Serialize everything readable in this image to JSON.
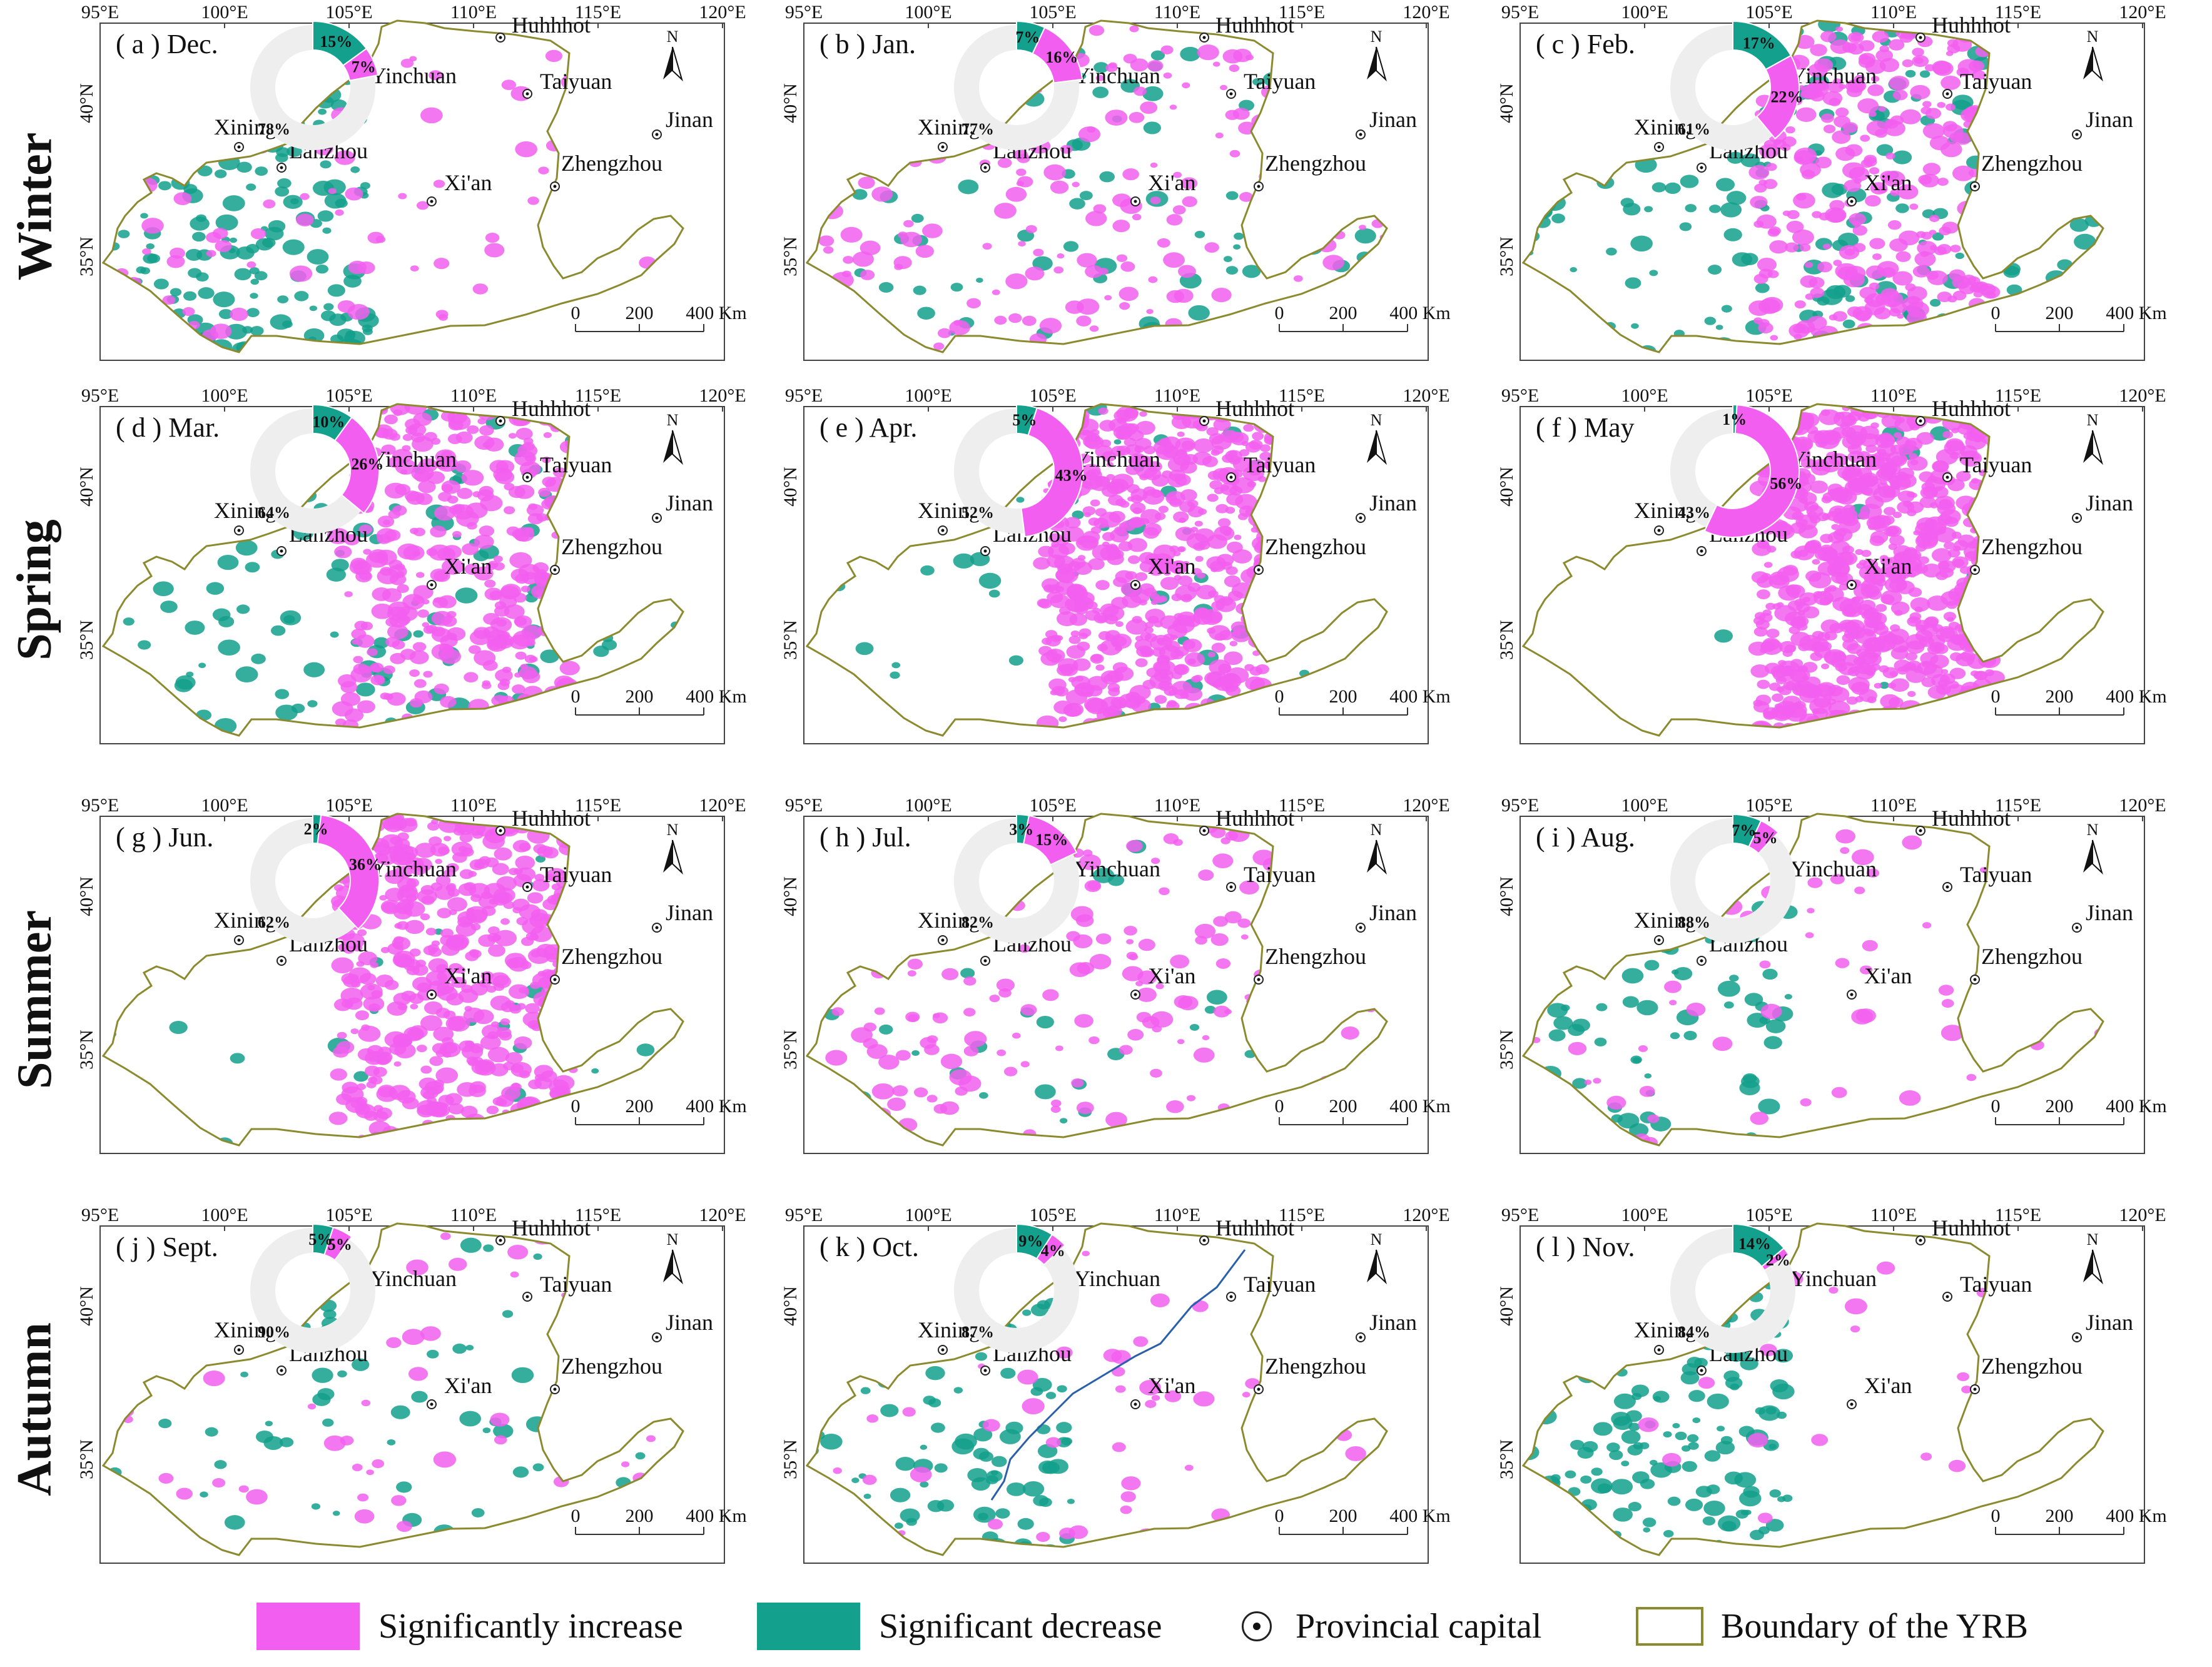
{
  "colors": {
    "increase": "#f25ff0",
    "decrease": "#13a08c",
    "nochange": "#eeeeee",
    "boundary": "#8b8a2e",
    "river": "#2a5faa"
  },
  "seasons": [
    "Winter",
    "Spring",
    "Summer",
    "Autumn"
  ],
  "lon_labels": [
    "95°E",
    "100°E",
    "105°E",
    "110°E",
    "115°E",
    "120°E"
  ],
  "lat_labels": [
    "40°N",
    "35°N"
  ],
  "cities": [
    "Huhhhot",
    "Yinchuan",
    "Taiyuan",
    "Jinan",
    "Xining",
    "Lanzhou",
    "Zhengzhou",
    "Xi'an"
  ],
  "scale_labels": [
    "0",
    "200",
    "400 Km"
  ],
  "north_label": "N",
  "panels": [
    {
      "label": "( a ) Dec.",
      "inc": 7,
      "dec": 15,
      "none": 78,
      "inc_label": "7%",
      "dec_label": "15%",
      "none_label": "78%"
    },
    {
      "label": "( b ) Jan.",
      "inc": 16,
      "dec": 7,
      "none": 77,
      "inc_label": "16%",
      "dec_label": "7%",
      "none_label": "77%"
    },
    {
      "label": "( c ) Feb.",
      "inc": 22,
      "dec": 17,
      "none": 61,
      "inc_label": "22%",
      "dec_label": "17%",
      "none_label": "61%"
    },
    {
      "label": "( d ) Mar.",
      "inc": 26,
      "dec": 10,
      "none": 64,
      "inc_label": "26%",
      "dec_label": "10%",
      "none_label": "64%"
    },
    {
      "label": "( e ) Apr.",
      "inc": 43,
      "dec": 5,
      "none": 52,
      "inc_label": "43%",
      "dec_label": "5%",
      "none_label": "52%"
    },
    {
      "label": "( f ) May",
      "inc": 56,
      "dec": 1,
      "none": 43,
      "inc_label": "56%",
      "dec_label": "1%",
      "none_label": "43%"
    },
    {
      "label": "( g ) Jun.",
      "inc": 36,
      "dec": 2,
      "none": 62,
      "inc_label": "36%",
      "dec_label": "2%",
      "none_label": "62%"
    },
    {
      "label": "( h ) Jul.",
      "inc": 15,
      "dec": 3,
      "none": 82,
      "inc_label": "15%",
      "dec_label": "3%",
      "none_label": "82%"
    },
    {
      "label": "( i ) Aug.",
      "inc": 5,
      "dec": 7,
      "none": 88,
      "inc_label": "5%",
      "dec_label": "7%",
      "none_label": "88%"
    },
    {
      "label": "( j ) Sept.",
      "inc": 5,
      "dec": 5,
      "none": 90,
      "inc_label": "5%",
      "dec_label": "5%",
      "none_label": "90%"
    },
    {
      "label": "( k ) Oct.",
      "inc": 4,
      "dec": 9,
      "none": 87,
      "inc_label": "4%",
      "dec_label": "9%",
      "none_label": "87%"
    },
    {
      "label": "( l ) Nov.",
      "inc": 2,
      "dec": 14,
      "none": 84,
      "inc_label": "2%",
      "dec_label": "14%",
      "none_label": "84%"
    }
  ],
  "legend": {
    "increase": "Significantly increase",
    "decrease": "Significant decrease",
    "capital": "Provincial capital",
    "boundary": "Boundary of the YRB"
  }
}
